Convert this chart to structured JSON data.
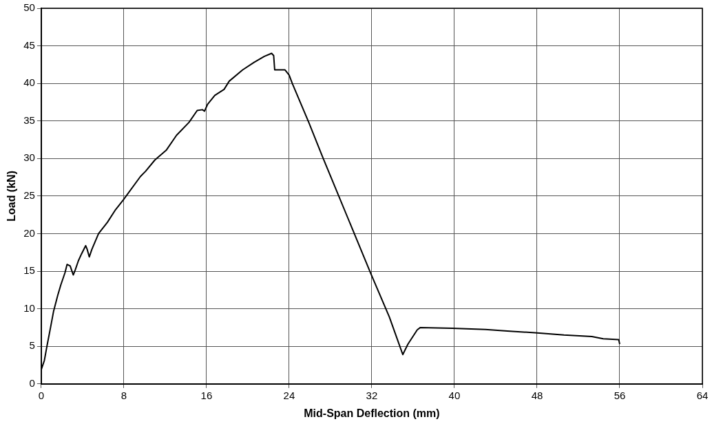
{
  "chart_data": {
    "type": "line",
    "xlabel": "Mid-Span Deflection (mm)",
    "ylabel": "Load (kN)",
    "x": [
      0,
      0.3,
      0.55,
      0.9,
      1.2,
      1.6,
      1.9,
      2.3,
      2.5,
      2.8,
      3.1,
      3.3,
      3.6,
      3.9,
      4.3,
      4.45,
      4.65,
      4.9,
      5.55,
      6.4,
      7.2,
      7.95,
      9.6,
      10.1,
      11.0,
      12.1,
      13.1,
      14.3,
      15.1,
      15.6,
      15.8,
      16.1,
      16.8,
      17.7,
      18.2,
      19.5,
      20.6,
      21.6,
      22.3,
      22.5,
      22.6,
      23.6,
      24.0,
      24.3,
      25.9,
      27.3,
      31.9,
      33.7,
      35.0,
      35.5,
      36.4,
      36.7,
      39.8,
      43.0,
      45.6,
      47.8,
      50.6,
      53.3,
      54.4,
      55.9,
      56.0
    ],
    "series": [
      {
        "color": "#000000",
        "values": [
          1.9,
          3.1,
          5,
          7.5,
          9.7,
          11.8,
          13.2,
          14.8,
          15.9,
          15.7,
          14.5,
          15.2,
          16.4,
          17.3,
          18.4,
          17.9,
          16.9,
          17.9,
          20.0,
          21.5,
          23.2,
          24.5,
          27.6,
          28.3,
          29.8,
          31.1,
          33.1,
          34.8,
          36.4,
          36.5,
          36.3,
          37.2,
          38.4,
          39.2,
          40.3,
          41.8,
          42.8,
          43.6,
          44.0,
          43.7,
          41.8,
          41.8,
          41.1,
          40.0,
          34.8,
          30.0,
          14.7,
          8.9,
          3.9,
          5.3,
          7.2,
          7.5,
          7.4,
          7.25,
          7.0,
          6.8,
          6.5,
          6.3,
          6.0,
          5.9,
          5.3
        ]
      }
    ],
    "xlim": [
      0,
      64
    ],
    "xticks": [
      0,
      8,
      16,
      24,
      32,
      40,
      48,
      56,
      64
    ],
    "ylim": [
      0,
      50
    ],
    "yticks": [
      0,
      5,
      10,
      15,
      20,
      25,
      30,
      35,
      40,
      45,
      50
    ],
    "grid": true,
    "legend": false,
    "marker": "none",
    "line_style": "solid"
  }
}
